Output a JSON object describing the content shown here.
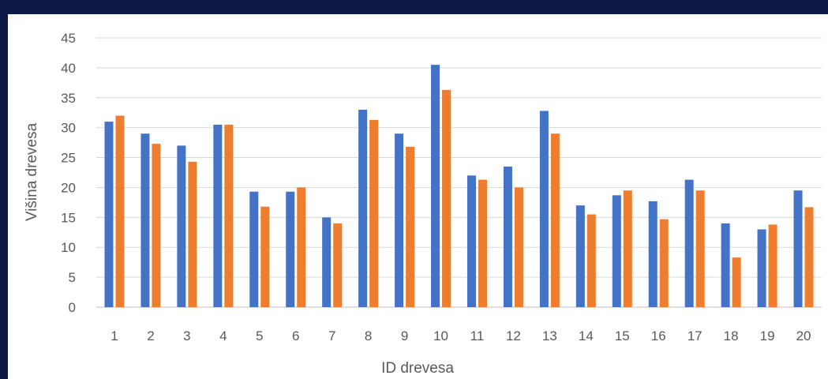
{
  "chart_data": {
    "type": "bar",
    "title": "",
    "xlabel": "ID drevesa",
    "ylabel": "Višina drevesa",
    "ylim": [
      0,
      45
    ],
    "yticks": [
      0,
      5,
      10,
      15,
      20,
      25,
      30,
      35,
      40,
      45
    ],
    "grid": true,
    "legend": "none",
    "categories": [
      "1",
      "2",
      "3",
      "4",
      "5",
      "6",
      "7",
      "8",
      "9",
      "10",
      "11",
      "12",
      "13",
      "14",
      "15",
      "16",
      "17",
      "18",
      "19",
      "20"
    ],
    "series": [
      {
        "color": "#4472c4",
        "values": [
          31,
          29,
          27,
          30.5,
          19.3,
          19.3,
          15,
          33,
          29,
          40.5,
          22,
          23.5,
          32.8,
          17,
          18.7,
          17.7,
          21.3,
          14,
          13,
          19.5
        ]
      },
      {
        "color": "#ed7d31",
        "values": [
          32,
          27.3,
          24.3,
          30.5,
          16.8,
          20,
          14,
          31.3,
          26.8,
          36.3,
          21.3,
          20,
          29,
          15.5,
          19.5,
          14.7,
          19.5,
          8.3,
          13.8,
          16.7
        ]
      }
    ]
  }
}
